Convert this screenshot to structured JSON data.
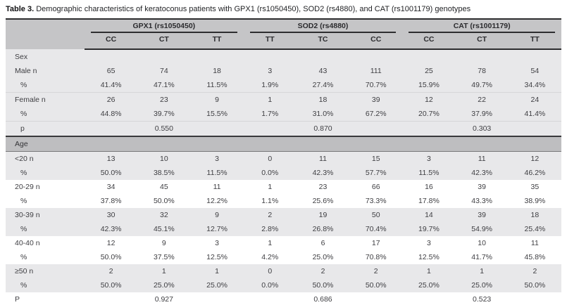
{
  "caption": {
    "label": "Table 3.",
    "text": "Demographic characteristics of keratoconus patients with GPX1 (rs1050450), SOD2 (rs4880), and CAT (rs1001179) genotypes"
  },
  "header": {
    "groups": [
      {
        "label": "GPX1 (rs1050450)",
        "alleles": [
          "CC",
          "CT",
          "TT"
        ]
      },
      {
        "label": "SOD2 (rs4880)",
        "alleles": [
          "TT",
          "TC",
          "CC"
        ]
      },
      {
        "label": "CAT (rs1001179)",
        "alleles": [
          "CC",
          "CT",
          "TT"
        ]
      }
    ]
  },
  "table": {
    "rows": [
      {
        "type": "section",
        "label": "Sex",
        "shade": "gray"
      },
      {
        "type": "data",
        "label": "Male n",
        "shade": "gray",
        "values": [
          "65",
          "74",
          "18",
          "3",
          "43",
          "111",
          "25",
          "78",
          "54"
        ]
      },
      {
        "type": "data",
        "label": "%",
        "indent": true,
        "shade": "gray",
        "values": [
          "41.4%",
          "47.1%",
          "11.5%",
          "1.9%",
          "27.4%",
          "70.7%",
          "15.9%",
          "49.7%",
          "34.4%"
        ]
      },
      {
        "type": "data",
        "label": "Female n",
        "shade": "gray",
        "sep": true,
        "values": [
          "26",
          "23",
          "9",
          "1",
          "18",
          "39",
          "12",
          "22",
          "24"
        ]
      },
      {
        "type": "data",
        "label": "%",
        "indent": true,
        "shade": "gray",
        "values": [
          "44.8%",
          "39.7%",
          "15.5%",
          "1.7%",
          "31.0%",
          "67.2%",
          "20.7%",
          "37.9%",
          "41.4%"
        ]
      },
      {
        "type": "data",
        "label": "p",
        "indent": true,
        "shade": "gray",
        "sep": true,
        "values": [
          "",
          "0.550",
          "",
          "",
          "0.870",
          "",
          "",
          "0.303",
          ""
        ]
      },
      {
        "type": "section",
        "label": "Age",
        "shade": "band"
      },
      {
        "type": "data",
        "label": "<20 n",
        "shade": "gray",
        "values": [
          "13",
          "10",
          "3",
          "0",
          "11",
          "15",
          "3",
          "11",
          "12"
        ]
      },
      {
        "type": "data",
        "label": "%",
        "indent": true,
        "shade": "gray",
        "values": [
          "50.0%",
          "38.5%",
          "11.5%",
          "0.0%",
          "42.3%",
          "57.7%",
          "11.5%",
          "42.3%",
          "46.2%"
        ]
      },
      {
        "type": "data",
        "label": "20-29 n",
        "shade": "white",
        "values": [
          "34",
          "45",
          "11",
          "1",
          "23",
          "66",
          "16",
          "39",
          "35"
        ]
      },
      {
        "type": "data",
        "label": "%",
        "indent": true,
        "shade": "white",
        "values": [
          "37.8%",
          "50.0%",
          "12.2%",
          "1.1%",
          "25.6%",
          "73.3%",
          "17.8%",
          "43.3%",
          "38.9%"
        ]
      },
      {
        "type": "data",
        "label": "30-39 n",
        "shade": "gray",
        "values": [
          "30",
          "32",
          "9",
          "2",
          "19",
          "50",
          "14",
          "39",
          "18"
        ]
      },
      {
        "type": "data",
        "label": "%",
        "indent": true,
        "shade": "gray",
        "values": [
          "42.3%",
          "45.1%",
          "12.7%",
          "2.8%",
          "26.8%",
          "70.4%",
          "19.7%",
          "54.9%",
          "25.4%"
        ]
      },
      {
        "type": "data",
        "label": "40-40 n",
        "shade": "white",
        "values": [
          "12",
          "9",
          "3",
          "1",
          "6",
          "17",
          "3",
          "10",
          "11"
        ]
      },
      {
        "type": "data",
        "label": "%",
        "indent": true,
        "shade": "white",
        "values": [
          "50.0%",
          "37.5%",
          "12.5%",
          "4.2%",
          "25.0%",
          "70.8%",
          "12.5%",
          "41.7%",
          "45.8%"
        ]
      },
      {
        "type": "data",
        "label": "≥50 n",
        "shade": "gray",
        "values": [
          "2",
          "1",
          "1",
          "0",
          "2",
          "2",
          "1",
          "1",
          "2"
        ]
      },
      {
        "type": "data",
        "label": "%",
        "indent": true,
        "shade": "gray",
        "values": [
          "50.0%",
          "25.0%",
          "25.0%",
          "0.0%",
          "50.0%",
          "50.0%",
          "25.0%",
          "25.0%",
          "50.0%"
        ]
      },
      {
        "type": "data",
        "label": "P",
        "shade": "white",
        "values": [
          "",
          "0.927",
          "",
          "",
          "0.686",
          "",
          "",
          "0.523",
          ""
        ]
      }
    ]
  }
}
